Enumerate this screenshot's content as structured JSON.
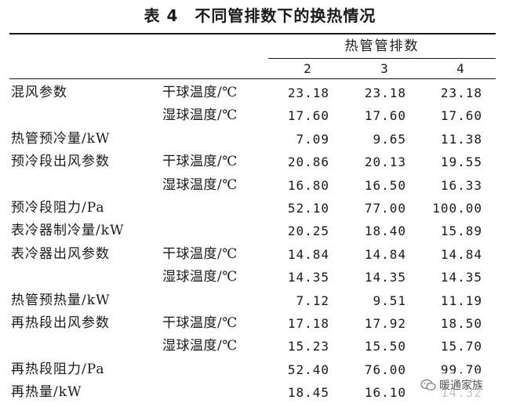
{
  "table": {
    "title": "表 4　不同管排数下的换热情况",
    "group_header": "热管管排数",
    "columns": [
      "2",
      "3",
      "4"
    ],
    "rows": [
      {
        "label": "混风参数",
        "sub": "干球温度/℃",
        "values": [
          "23.18",
          "23.18",
          "23.18"
        ]
      },
      {
        "label": "",
        "sub": "湿球温度/℃",
        "values": [
          "17.60",
          "17.60",
          "17.60"
        ]
      },
      {
        "label": "热管预冷量/kW",
        "sub": "",
        "values": [
          "7.09",
          "9.65",
          "11.38"
        ]
      },
      {
        "label": "预冷段出风参数",
        "sub": "干球温度/℃",
        "values": [
          "20.86",
          "20.13",
          "19.55"
        ]
      },
      {
        "label": "",
        "sub": "湿球温度/℃",
        "values": [
          "16.80",
          "16.50",
          "16.33"
        ]
      },
      {
        "label": "预冷段阻力/Pa",
        "sub": "",
        "values": [
          "52.10",
          "77.00",
          "100.00"
        ]
      },
      {
        "label": "表冷器制冷量/kW",
        "sub": "",
        "values": [
          "20.25",
          "18.40",
          "15.89"
        ]
      },
      {
        "label": "表冷器出风参数",
        "sub": "干球温度/℃",
        "values": [
          "14.84",
          "14.84",
          "14.84"
        ]
      },
      {
        "label": "",
        "sub": "湿球温度/℃",
        "values": [
          "14.35",
          "14.35",
          "14.35"
        ]
      },
      {
        "label": "热管预热量/kW",
        "sub": "",
        "values": [
          "7.12",
          "9.51",
          "11.19"
        ]
      },
      {
        "label": "再热段出风参数",
        "sub": "干球温度/℃",
        "values": [
          "17.18",
          "17.92",
          "18.50"
        ]
      },
      {
        "label": "",
        "sub": "湿球温度/℃",
        "values": [
          "15.23",
          "15.50",
          "15.70"
        ]
      },
      {
        "label": "再热段阻力/Pa",
        "sub": "",
        "values": [
          "52.40",
          "76.00",
          "99.70"
        ]
      },
      {
        "label": "再热量/kW",
        "sub": "",
        "values": [
          "18.45",
          "16.10",
          "14.32"
        ]
      }
    ]
  },
  "watermark": {
    "text": "暖通家族",
    "icon": "wechat-icon"
  }
}
